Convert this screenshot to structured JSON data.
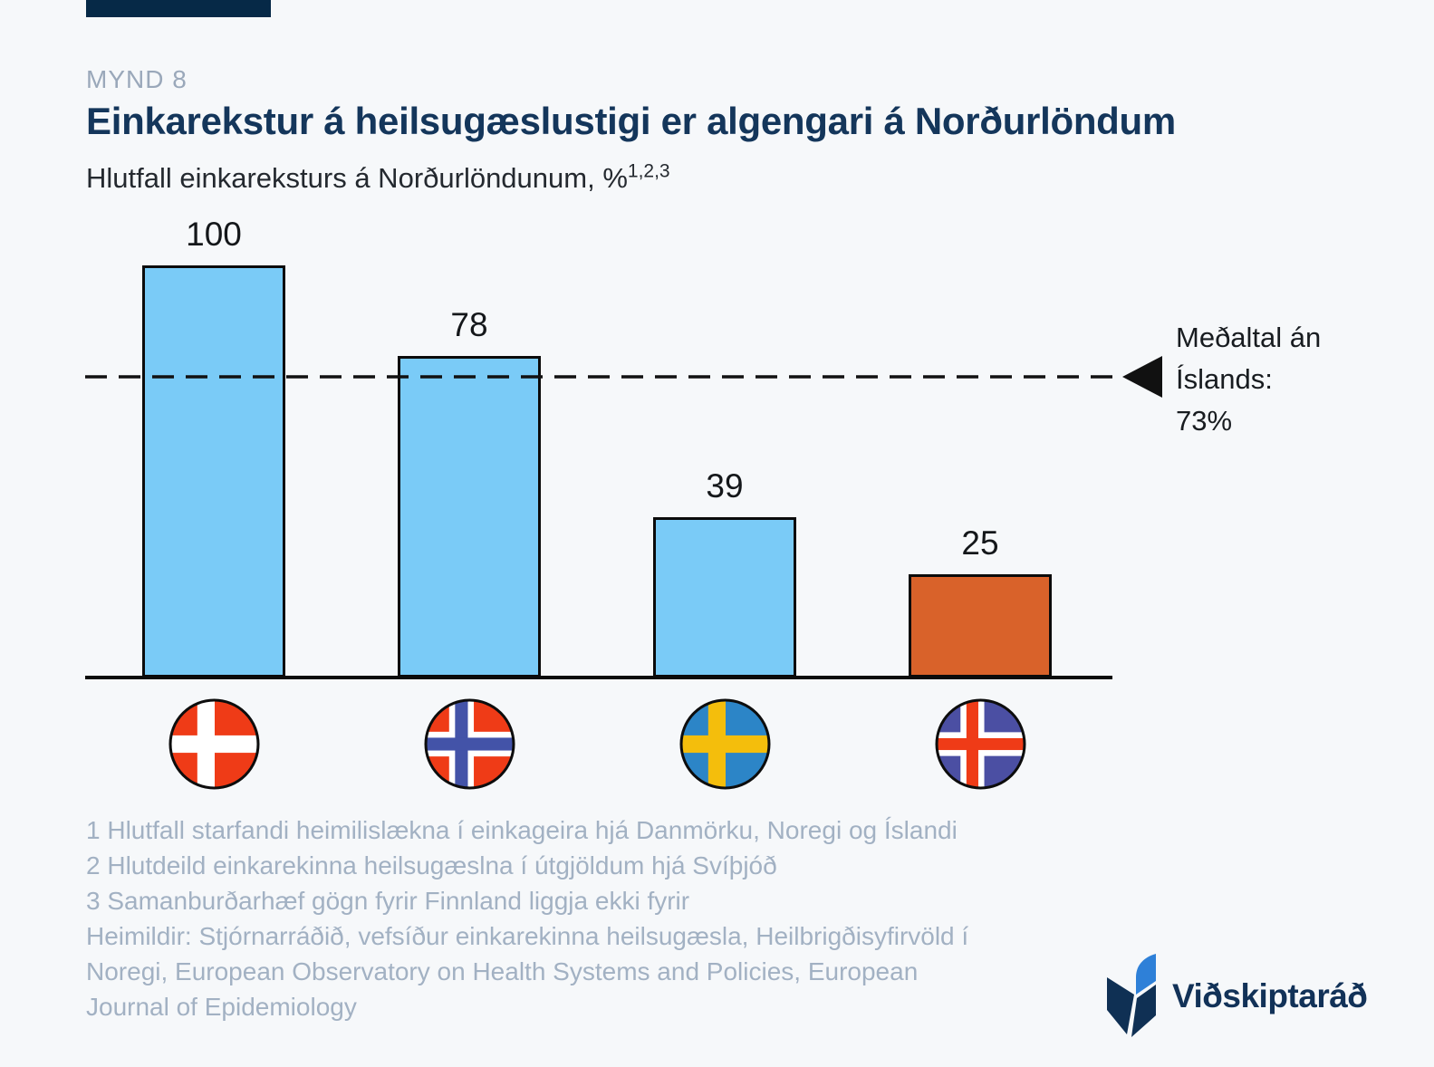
{
  "page": {
    "background": "#F6F8FA"
  },
  "header": {
    "kicker": "MYND 8",
    "title": "Einkarekstur á heilsugæslustigi er algengari á Norðurlöndum",
    "subtitle": "Hlutfall einkareksturs á Norðurlöndunum, %",
    "subtitle_superscript": "1,2,3"
  },
  "chart_data": {
    "type": "bar",
    "title": "Hlutfall einkareksturs á Norðurlöndunum, %",
    "categories": [
      "Denmark",
      "Norway",
      "Sweden",
      "Iceland"
    ],
    "values": [
      100,
      78,
      39,
      25
    ],
    "value_labels": [
      "100",
      "78",
      "39",
      "25"
    ],
    "bar_colors": [
      "#7ACBF7",
      "#7ACBF7",
      "#7ACBF7",
      "#D9622A"
    ],
    "bar_border_color": "#0B0B0B",
    "ylim": [
      0,
      105
    ],
    "grid": false,
    "legend": null,
    "xlabel": "",
    "ylabel": "",
    "reference_line": {
      "value": 73,
      "style": "dashed",
      "color": "#111111",
      "label_lines": [
        "Meðaltal án",
        "Íslands:",
        "73%"
      ]
    },
    "category_flags": [
      {
        "country": "Denmark",
        "background": "#EF3B17",
        "crosses": [
          {
            "color": "#FFFFFF",
            "width": 0.19
          }
        ]
      },
      {
        "country": "Norway",
        "background": "#EF3B17",
        "crosses": [
          {
            "color": "#FFFFFF",
            "width": 0.27
          },
          {
            "color": "#4353A8",
            "width": 0.14
          }
        ]
      },
      {
        "country": "Sweden",
        "background": "#2C85C7",
        "crosses": [
          {
            "color": "#F4BE0C",
            "width": 0.19
          }
        ]
      },
      {
        "country": "Iceland",
        "background": "#4B4FA3",
        "crosses": [
          {
            "color": "#FFFFFF",
            "width": 0.26
          },
          {
            "color": "#EF3B17",
            "width": 0.13
          }
        ]
      }
    ]
  },
  "footnotes": {
    "lines": [
      "1 Hlutfall starfandi heimilislækna í einkageira hjá Danmörku, Noregi og Íslandi",
      "2 Hlutdeild einkarekinna heilsugæslna í útgjöldum hjá Svíþjóð",
      "3 Samanburðarhæf gögn fyrir Finnland liggja ekki fyrir"
    ],
    "sources_lines": [
      "Heimildir: Stjórnarráðið, vefsíður einkarekinna heilsugæsla, Heilbrigðisyfirvöld í",
      "Noregi, European Observatory on Health Systems and Policies, European",
      "Journal of Epidemiology"
    ]
  },
  "logo": {
    "text": "Viðskiptaráð",
    "navy": "#123258",
    "blue": "#2E80D8"
  },
  "colors": {
    "accent_bar": "#062947",
    "title": "#14365B",
    "kicker": "#9AA8BA",
    "body_text": "#24292F",
    "footnote": "#A2B1C3",
    "axis": "#0B0B0B"
  }
}
